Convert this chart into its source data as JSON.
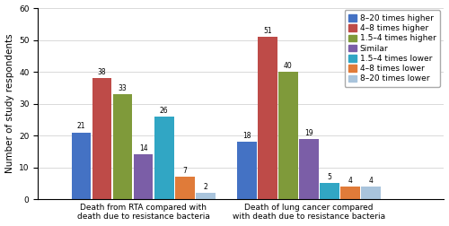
{
  "categories": [
    "Death from RTA compared with\ndeath due to resistance bacteria",
    "Death of lung cancer compared\nwith death due to resistance bacteria"
  ],
  "series": [
    {
      "label": "8–20 times higher",
      "color": "#4472C4",
      "values": [
        21,
        18
      ]
    },
    {
      "label": "4–8 times higher",
      "color": "#BE4B48",
      "values": [
        38,
        51
      ]
    },
    {
      "label": "1.5–4 times higher",
      "color": "#7F9A3A",
      "values": [
        33,
        40
      ]
    },
    {
      "label": "Similar",
      "color": "#7B5EA7",
      "values": [
        14,
        19
      ]
    },
    {
      "label": "1.5–4 times lower",
      "color": "#31A6C4",
      "values": [
        26,
        5
      ]
    },
    {
      "label": "4–8 times lower",
      "color": "#E07B39",
      "values": [
        7,
        4
      ]
    },
    {
      "label": "8–20 times lower",
      "color": "#A9C4DC",
      "values": [
        2,
        4
      ]
    }
  ],
  "ylabel": "Number of study respondents",
  "ylim": [
    0,
    60
  ],
  "yticks": [
    0,
    10,
    20,
    30,
    40,
    50,
    60
  ],
  "bar_width": 0.055,
  "group_centers": [
    0.28,
    0.72
  ],
  "xlim": [
    0.0,
    1.08
  ],
  "figsize": [
    5.0,
    2.52
  ],
  "dpi": 100,
  "tick_fontsize": 6.5,
  "legend_fontsize": 6.5,
  "ylabel_fontsize": 7.5,
  "annotation_fontsize": 5.5
}
